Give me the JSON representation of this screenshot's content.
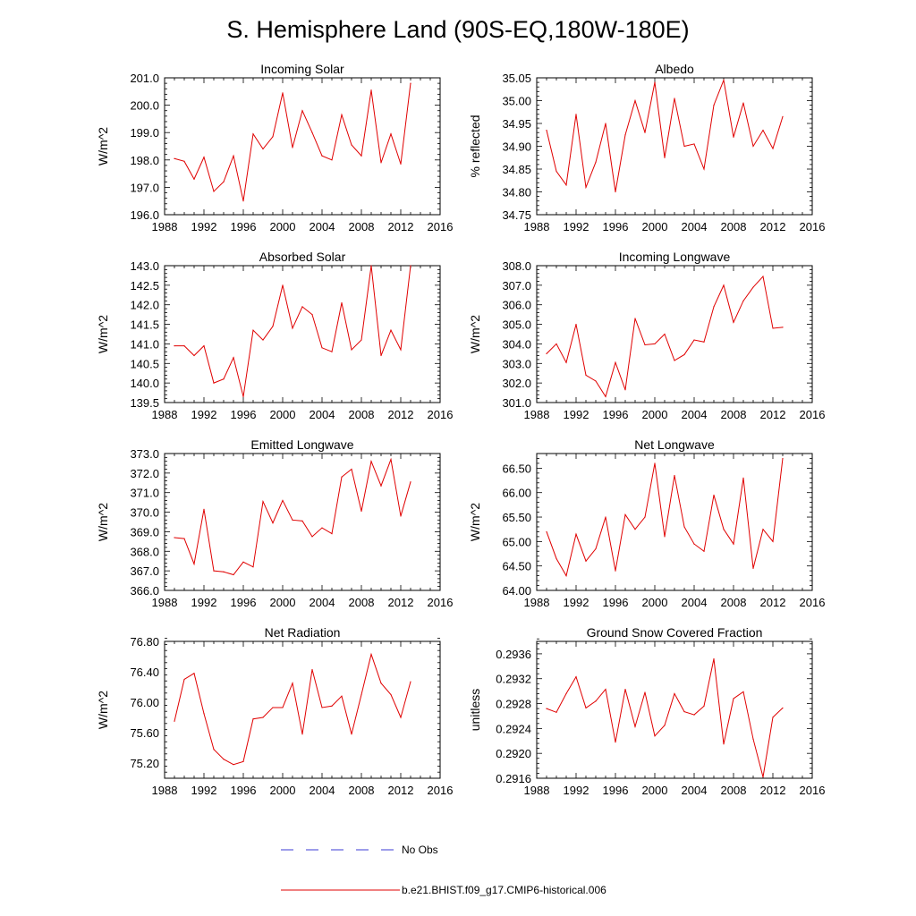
{
  "figure_title": "S. Hemisphere Land (90S-EQ,180W-180E)",
  "legend": {
    "obs_label": "No Obs",
    "model_label": "b.e21.BHIST.f09_g17.CMIP6-historical.006",
    "obs_color": "#3b3bd6",
    "model_color": "#e00000"
  },
  "chart_data": [
    {
      "type": "line",
      "title": "Incoming Solar",
      "xlabel": "",
      "ylabel": "W/m^2",
      "xlim": [
        1988,
        2016
      ],
      "ylim": [
        196.0,
        201.0
      ],
      "xticks": [
        1988,
        1992,
        1996,
        2000,
        2004,
        2008,
        2012,
        2016
      ],
      "yticks": [
        196.0,
        197.0,
        198.0,
        199.0,
        200.0,
        201.0
      ],
      "ytick_labels": [
        "196.0",
        "197.0",
        "198.0",
        "199.0",
        "200.0",
        "201.0"
      ],
      "x": [
        1989,
        1990,
        1991,
        1992,
        1993,
        1994,
        1995,
        1996,
        1997,
        1998,
        1999,
        2000,
        2001,
        2002,
        2003,
        2004,
        2005,
        2006,
        2007,
        2008,
        2009,
        2010,
        2011,
        2012,
        2013
      ],
      "series": [
        {
          "name": "b.e21.BHIST.f09_g17.CMIP6-historical.006",
          "values": [
            198.05,
            197.95,
            197.3,
            198.1,
            196.85,
            197.2,
            198.15,
            196.5,
            198.95,
            198.4,
            198.85,
            200.45,
            198.45,
            199.8,
            199.0,
            198.15,
            198.0,
            199.65,
            198.55,
            198.15,
            200.55,
            197.9,
            198.95,
            197.85,
            200.8
          ]
        }
      ]
    },
    {
      "type": "line",
      "title": "Albedo",
      "xlabel": "",
      "ylabel": "% reflected",
      "xlim": [
        1988,
        2016
      ],
      "ylim": [
        34.75,
        35.05
      ],
      "xticks": [
        1988,
        1992,
        1996,
        2000,
        2004,
        2008,
        2012,
        2016
      ],
      "yticks": [
        34.75,
        34.8,
        34.85,
        34.9,
        34.95,
        35.0,
        35.05
      ],
      "ytick_labels": [
        "34.75",
        "34.80",
        "34.85",
        "34.90",
        "34.95",
        "35.00",
        "35.05"
      ],
      "x": [
        1989,
        1990,
        1991,
        1992,
        1993,
        1994,
        1995,
        1996,
        1997,
        1998,
        1999,
        2000,
        2001,
        2002,
        2003,
        2004,
        2005,
        2006,
        2007,
        2008,
        2009,
        2010,
        2011,
        2012,
        2013
      ],
      "series": [
        {
          "name": "b.e21.BHIST.f09_g17.CMIP6-historical.006",
          "values": [
            34.935,
            34.845,
            34.815,
            34.97,
            34.81,
            34.865,
            34.95,
            34.8,
            34.925,
            35.0,
            34.93,
            35.04,
            34.875,
            35.005,
            34.9,
            34.905,
            34.85,
            34.99,
            35.045,
            34.92,
            34.995,
            34.9,
            34.935,
            34.895,
            34.965
          ]
        }
      ]
    },
    {
      "type": "line",
      "title": "Absorbed Solar",
      "xlabel": "",
      "ylabel": "W/m^2",
      "xlim": [
        1988,
        2016
      ],
      "ylim": [
        139.5,
        143.0
      ],
      "xticks": [
        1988,
        1992,
        1996,
        2000,
        2004,
        2008,
        2012,
        2016
      ],
      "yticks": [
        139.5,
        140.0,
        140.5,
        141.0,
        141.5,
        142.0,
        142.5,
        143.0
      ],
      "ytick_labels": [
        "139.5",
        "140.0",
        "140.5",
        "141.0",
        "141.5",
        "142.0",
        "142.5",
        "143.0"
      ],
      "x": [
        1989,
        1990,
        1991,
        1992,
        1993,
        1994,
        1995,
        1996,
        1997,
        1998,
        1999,
        2000,
        2001,
        2002,
        2003,
        2004,
        2005,
        2006,
        2007,
        2008,
        2009,
        2010,
        2011,
        2012,
        2013
      ],
      "series": [
        {
          "name": "b.e21.BHIST.f09_g17.CMIP6-historical.006",
          "values": [
            140.95,
            140.95,
            140.7,
            140.95,
            140.0,
            140.1,
            140.65,
            139.65,
            141.35,
            141.1,
            141.45,
            142.5,
            141.4,
            141.95,
            141.75,
            140.9,
            140.8,
            142.05,
            140.85,
            141.1,
            143.0,
            140.7,
            141.35,
            140.85,
            143.0
          ]
        }
      ]
    },
    {
      "type": "line",
      "title": "Incoming Longwave",
      "xlabel": "",
      "ylabel": "W/m^2",
      "xlim": [
        1988,
        2016
      ],
      "ylim": [
        301.0,
        308.0
      ],
      "xticks": [
        1988,
        1992,
        1996,
        2000,
        2004,
        2008,
        2012,
        2016
      ],
      "yticks": [
        301.0,
        302.0,
        303.0,
        304.0,
        305.0,
        306.0,
        307.0,
        308.0
      ],
      "ytick_labels": [
        "301.0",
        "302.0",
        "303.0",
        "304.0",
        "305.0",
        "306.0",
        "307.0",
        "308.0"
      ],
      "x": [
        1989,
        1990,
        1991,
        1992,
        1993,
        1994,
        1995,
        1996,
        1997,
        1998,
        1999,
        2000,
        2001,
        2002,
        2003,
        2004,
        2005,
        2006,
        2007,
        2008,
        2009,
        2010,
        2011,
        2012,
        2013
      ],
      "series": [
        {
          "name": "b.e21.BHIST.f09_g17.CMIP6-historical.006",
          "values": [
            303.5,
            304.0,
            303.05,
            305.0,
            302.4,
            302.1,
            301.3,
            303.05,
            301.65,
            305.3,
            303.95,
            304.0,
            304.5,
            303.15,
            303.45,
            304.2,
            304.1,
            305.9,
            307.0,
            305.1,
            306.2,
            306.9,
            307.45,
            304.8,
            304.85
          ]
        }
      ]
    },
    {
      "type": "line",
      "title": "Emitted Longwave",
      "xlabel": "",
      "ylabel": "W/m^2",
      "xlim": [
        1988,
        2016
      ],
      "ylim": [
        366.0,
        373.0
      ],
      "xticks": [
        1988,
        1992,
        1996,
        2000,
        2004,
        2008,
        2012,
        2016
      ],
      "yticks": [
        366.0,
        367.0,
        368.0,
        369.0,
        370.0,
        371.0,
        372.0,
        373.0
      ],
      "ytick_labels": [
        "366.0",
        "367.0",
        "368.0",
        "369.0",
        "370.0",
        "371.0",
        "372.0",
        "373.0"
      ],
      "x": [
        1989,
        1990,
        1991,
        1992,
        1993,
        1994,
        1995,
        1996,
        1997,
        1998,
        1999,
        2000,
        2001,
        2002,
        2003,
        2004,
        2005,
        2006,
        2007,
        2008,
        2009,
        2010,
        2011,
        2012,
        2013
      ],
      "series": [
        {
          "name": "b.e21.BHIST.f09_g17.CMIP6-historical.006",
          "values": [
            368.7,
            368.65,
            367.35,
            370.15,
            367.0,
            366.95,
            366.8,
            367.45,
            367.2,
            370.55,
            369.45,
            370.6,
            369.6,
            369.55,
            368.75,
            369.2,
            368.9,
            371.8,
            372.2,
            370.05,
            372.6,
            371.35,
            372.7,
            369.8,
            371.55
          ]
        }
      ]
    },
    {
      "type": "line",
      "title": "Net Longwave",
      "xlabel": "",
      "ylabel": "W/m^2",
      "xlim": [
        1988,
        2016
      ],
      "ylim": [
        64.0,
        66.8
      ],
      "xticks": [
        1988,
        1992,
        1996,
        2000,
        2004,
        2008,
        2012,
        2016
      ],
      "yticks": [
        64.0,
        64.5,
        65.0,
        65.5,
        66.0,
        66.5
      ],
      "ytick_labels": [
        "64.00",
        "64.50",
        "65.00",
        "65.50",
        "66.00",
        "66.50"
      ],
      "x": [
        1989,
        1990,
        1991,
        1992,
        1993,
        1994,
        1995,
        1996,
        1997,
        1998,
        1999,
        2000,
        2001,
        2002,
        2003,
        2004,
        2005,
        2006,
        2007,
        2008,
        2009,
        2010,
        2011,
        2012,
        2013
      ],
      "series": [
        {
          "name": "b.e21.BHIST.f09_g17.CMIP6-historical.006",
          "values": [
            65.2,
            64.65,
            64.3,
            65.15,
            64.6,
            64.85,
            65.5,
            64.4,
            65.55,
            65.25,
            65.5,
            66.6,
            65.1,
            66.35,
            65.3,
            64.95,
            64.8,
            65.95,
            65.25,
            64.95,
            66.3,
            64.45,
            65.25,
            65.0,
            66.7
          ]
        }
      ]
    },
    {
      "type": "line",
      "title": "Net Radiation",
      "xlabel": "",
      "ylabel": "W/m^2",
      "xlim": [
        1988,
        2016
      ],
      "ylim": [
        75.0,
        76.8
      ],
      "xticks": [
        1988,
        1992,
        1996,
        2000,
        2004,
        2008,
        2012,
        2016
      ],
      "yticks": [
        75.2,
        75.6,
        76.0,
        76.4,
        76.8
      ],
      "ytick_labels": [
        "75.20",
        "75.60",
        "76.00",
        "76.40",
        "76.80"
      ],
      "x": [
        1989,
        1990,
        1991,
        1992,
        1993,
        1994,
        1995,
        1996,
        1997,
        1998,
        1999,
        2000,
        2001,
        2002,
        2003,
        2004,
        2005,
        2006,
        2007,
        2008,
        2009,
        2010,
        2011,
        2012,
        2013
      ],
      "series": [
        {
          "name": "b.e21.BHIST.f09_g17.CMIP6-historical.006",
          "values": [
            75.75,
            76.3,
            76.38,
            75.85,
            75.38,
            75.25,
            75.18,
            75.22,
            75.78,
            75.8,
            75.93,
            75.93,
            76.25,
            75.58,
            76.43,
            75.93,
            75.95,
            76.08,
            75.58,
            76.1,
            76.63,
            76.25,
            76.1,
            75.8,
            76.27
          ]
        }
      ]
    },
    {
      "type": "line",
      "title": "Ground Snow Covered Fraction",
      "xlabel": "",
      "ylabel": "unitless",
      "xlim": [
        1988,
        2016
      ],
      "ylim": [
        0.2916,
        0.2938
      ],
      "xticks": [
        1988,
        1992,
        1996,
        2000,
        2004,
        2008,
        2012,
        2016
      ],
      "yticks": [
        0.2916,
        0.292,
        0.2924,
        0.2928,
        0.2932,
        0.2936
      ],
      "ytick_labels": [
        "0.2916",
        "0.2920",
        "0.2924",
        "0.2928",
        "0.2932",
        "0.2936"
      ],
      "x": [
        1989,
        1990,
        1991,
        1992,
        1993,
        1994,
        1995,
        1996,
        1997,
        1998,
        1999,
        2000,
        2001,
        2002,
        2003,
        2004,
        2005,
        2006,
        2007,
        2008,
        2009,
        2010,
        2011,
        2012,
        2013
      ],
      "series": [
        {
          "name": "b.e21.BHIST.f09_g17.CMIP6-historical.006",
          "values": [
            0.29272,
            0.29266,
            0.29296,
            0.29323,
            0.29273,
            0.29284,
            0.29303,
            0.29218,
            0.29303,
            0.29243,
            0.29298,
            0.29228,
            0.29245,
            0.29296,
            0.29267,
            0.29262,
            0.29276,
            0.29352,
            0.29215,
            0.29288,
            0.29299,
            0.29223,
            0.29162,
            0.29258,
            0.29273
          ]
        }
      ]
    }
  ]
}
